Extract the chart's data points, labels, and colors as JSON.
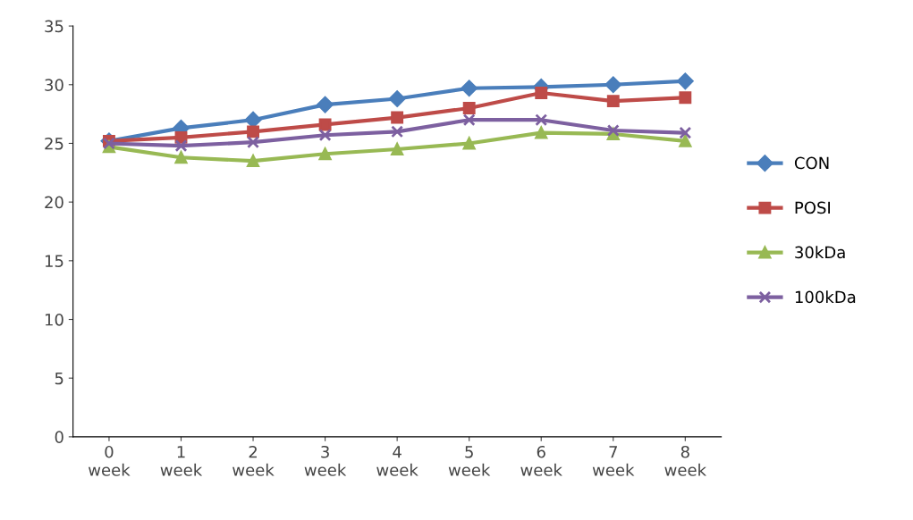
{
  "chart_data": {
    "type": "line",
    "categories": [
      "0\nweek",
      "1\nweek",
      "2\nweek",
      "3\nweek",
      "4\nweek",
      "5\nweek",
      "6\nweek",
      "7\nweek",
      "8\nweek"
    ],
    "ylim": [
      0,
      35
    ],
    "yticks": [
      0,
      5,
      10,
      15,
      20,
      25,
      30,
      35
    ],
    "grid": false,
    "legend": "right",
    "line_style": "solid",
    "series": [
      {
        "name": "CON",
        "color": "#4a7ebb",
        "marker": "diamond",
        "values": [
          25.2,
          26.3,
          27.0,
          28.3,
          28.8,
          29.7,
          29.8,
          30.0,
          30.3
        ]
      },
      {
        "name": "POSI",
        "color": "#be4b48",
        "marker": "square",
        "values": [
          25.2,
          25.5,
          26.0,
          26.6,
          27.2,
          28.0,
          29.3,
          28.6,
          28.9
        ]
      },
      {
        "name": "30kDa",
        "color": "#98b954",
        "marker": "triangle",
        "values": [
          24.7,
          23.8,
          23.5,
          24.1,
          24.5,
          25.0,
          25.9,
          25.8,
          25.2
        ]
      },
      {
        "name": "100kDa",
        "color": "#7d60a0",
        "marker": "cross",
        "values": [
          25.0,
          24.8,
          25.1,
          25.7,
          26.0,
          27.0,
          27.0,
          26.1,
          25.9
        ]
      }
    ]
  }
}
